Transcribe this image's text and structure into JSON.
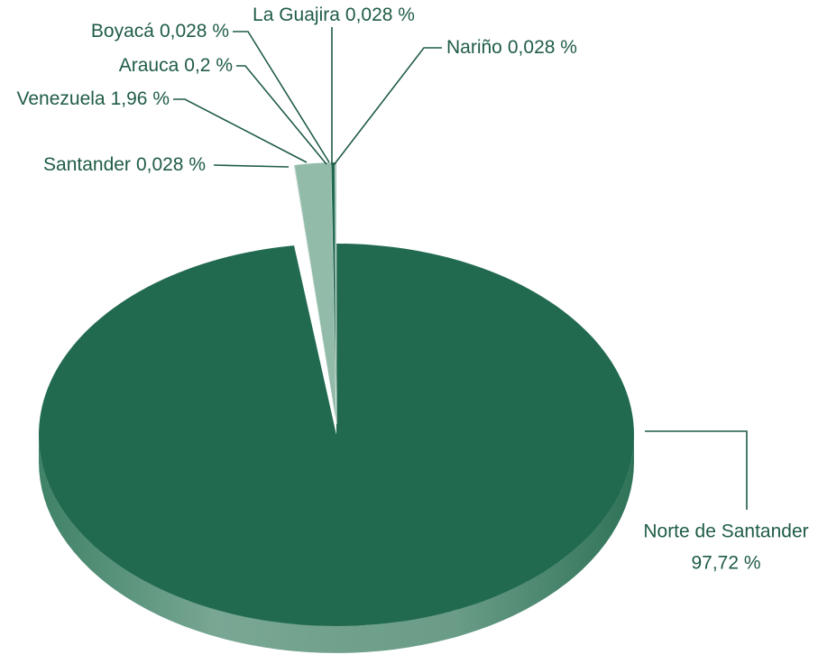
{
  "chart_data": {
    "type": "pie",
    "categories": [
      "Norte de Santander",
      "Santander",
      "Venezuela",
      "Arauca",
      "Boyacá",
      "La Guajira",
      "Nariño"
    ],
    "values": [
      97.72,
      0.028,
      1.96,
      0.2,
      0.028,
      0.028,
      0.028
    ],
    "value_labels": [
      "97,72 %",
      "0,028 %",
      "1,96 %",
      "0,2 %",
      "0,028 %",
      "0,028 %",
      "0,028 %"
    ],
    "colors": [
      "#216a50",
      "#216a50",
      "#93bba9",
      "#216a50",
      "#216a50",
      "#216a50",
      "#216a50"
    ]
  }
}
